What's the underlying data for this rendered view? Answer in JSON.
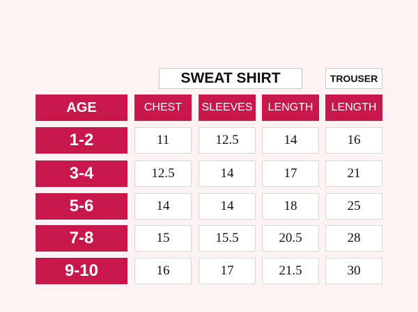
{
  "header": {
    "groups": [
      "SWEAT SHIRT",
      "TROUSER"
    ]
  },
  "table": {
    "columns": [
      "AGE",
      "CHEST",
      "SLEEVES",
      "LENGTH",
      "LENGTH"
    ],
    "rows": [
      [
        "1-2",
        "11",
        "12.5",
        "14",
        "16"
      ],
      [
        "3-4",
        "12.5",
        "14",
        "17",
        "21"
      ],
      [
        "5-6",
        "14",
        "14",
        "18",
        "25"
      ],
      [
        "7-8",
        "15",
        "15.5",
        "20.5",
        "28"
      ],
      [
        "9-10",
        "16",
        "17",
        "21.5",
        "30"
      ]
    ]
  }
}
